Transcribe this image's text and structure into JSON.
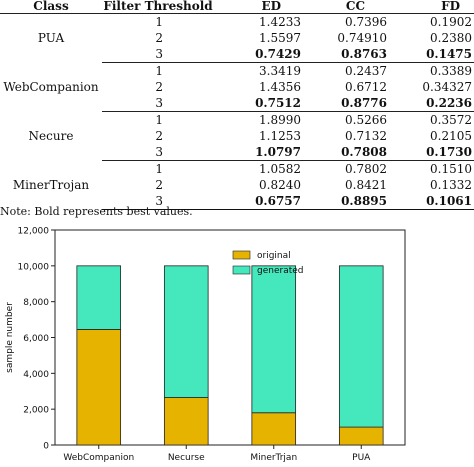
{
  "table": {
    "headers": [
      "Class",
      "Filter Threshold",
      "ED",
      "CC",
      "FD"
    ],
    "groups": [
      {
        "class": "PUA",
        "rows": [
          {
            "threshold": "1",
            "ed": "1.4233",
            "cc": "0.7396",
            "fd": "0.1902",
            "bold": []
          },
          {
            "threshold": "2",
            "ed": "1.5597",
            "cc": "0.74910",
            "fd": "0.2380",
            "bold": []
          },
          {
            "threshold": "3",
            "ed": "0.7429",
            "cc": "0.8763",
            "fd": "0.1475",
            "bold": [
              "ed",
              "cc",
              "fd"
            ]
          }
        ]
      },
      {
        "class": "WebCompanion",
        "rows": [
          {
            "threshold": "1",
            "ed": "3.3419",
            "cc": "0.2437",
            "fd": "0.3389",
            "bold": []
          },
          {
            "threshold": "2",
            "ed": "1.4356",
            "cc": "0.6712",
            "fd": "0.34327",
            "bold": []
          },
          {
            "threshold": "3",
            "ed": "0.7512",
            "cc": "0.8776",
            "fd": "0.2236",
            "bold": [
              "ed",
              "cc",
              "fd"
            ]
          }
        ]
      },
      {
        "class": "Necure",
        "rows": [
          {
            "threshold": "1",
            "ed": "1.8990",
            "cc": "0.5266",
            "fd": "0.3572",
            "bold": []
          },
          {
            "threshold": "2",
            "ed": "1.1253",
            "cc": "0.7132",
            "fd": "0.2105",
            "bold": []
          },
          {
            "threshold": "3",
            "ed": "1.0797",
            "cc": "0.7808",
            "fd": "0.1730",
            "bold": [
              "ed",
              "cc",
              "fd"
            ]
          }
        ]
      },
      {
        "class": "MinerTrojan",
        "rows": [
          {
            "threshold": "1",
            "ed": "1.0582",
            "cc": "0.7802",
            "fd": "0.1510",
            "bold": []
          },
          {
            "threshold": "2",
            "ed": "0.8240",
            "cc": "0.8421",
            "fd": "0.1332",
            "bold": []
          },
          {
            "threshold": "3",
            "ed": "0.6757",
            "cc": "0.8895",
            "fd": "0.1061",
            "bold": [
              "ed",
              "cc",
              "fd"
            ]
          }
        ]
      }
    ],
    "note": "Note: Bold represents best values."
  },
  "chart_data": {
    "type": "bar",
    "stacked": true,
    "categories": [
      "WebCompanion",
      "Necurse",
      "MinerTrjan",
      "PUA"
    ],
    "series": [
      {
        "name": "original",
        "color": "#e6b400",
        "values": [
          6450,
          2650,
          1800,
          1000
        ]
      },
      {
        "name": "generated",
        "color": "#44e8bc",
        "values": [
          3550,
          7350,
          8200,
          9000
        ]
      }
    ],
    "title": "",
    "xlabel": "",
    "ylabel": "sample number",
    "ylim": [
      0,
      12000
    ],
    "yticks": [
      0,
      2000,
      4000,
      6000,
      8000,
      10000,
      12000
    ],
    "ytick_labels": [
      "0",
      "2,000",
      "4,000",
      "6,000",
      "8,000",
      "10,000",
      "12,000"
    ],
    "legend_position": "top-center",
    "grid": false
  }
}
